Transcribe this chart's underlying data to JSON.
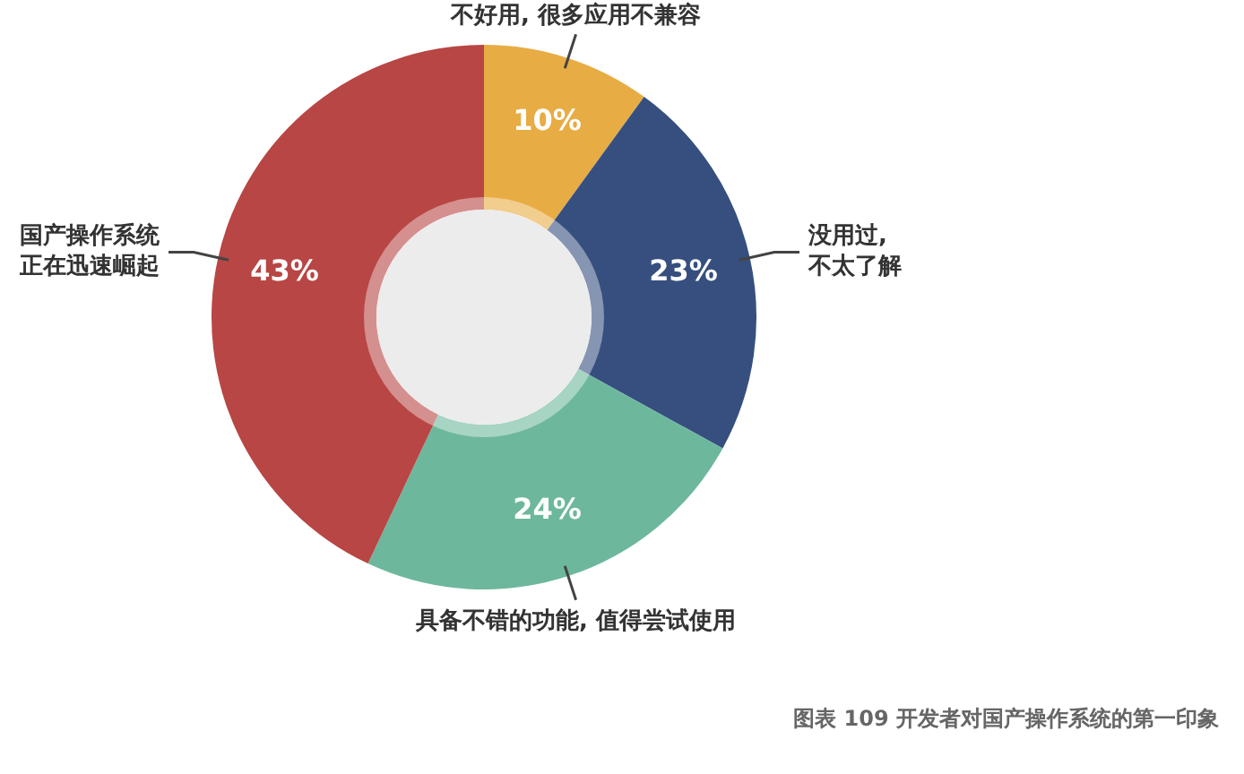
{
  "chart_data": {
    "type": "donut",
    "categories": [
      "不好用, 很多应用不兼容",
      "没用过,不太了解",
      "具备不错的功能, 值得尝试使用",
      "国产操作系统正在迅速崛起"
    ],
    "values": [
      10,
      23,
      24,
      43
    ],
    "colors": [
      "#e8ac44",
      "#364f7f",
      "#6db89c",
      "#b84644"
    ],
    "value_labels": [
      "10%",
      "23%",
      "24%",
      "43%"
    ],
    "legend": false,
    "annotations": [
      "图表 109 开发者对国产操作系统的第一印象"
    ]
  }
}
